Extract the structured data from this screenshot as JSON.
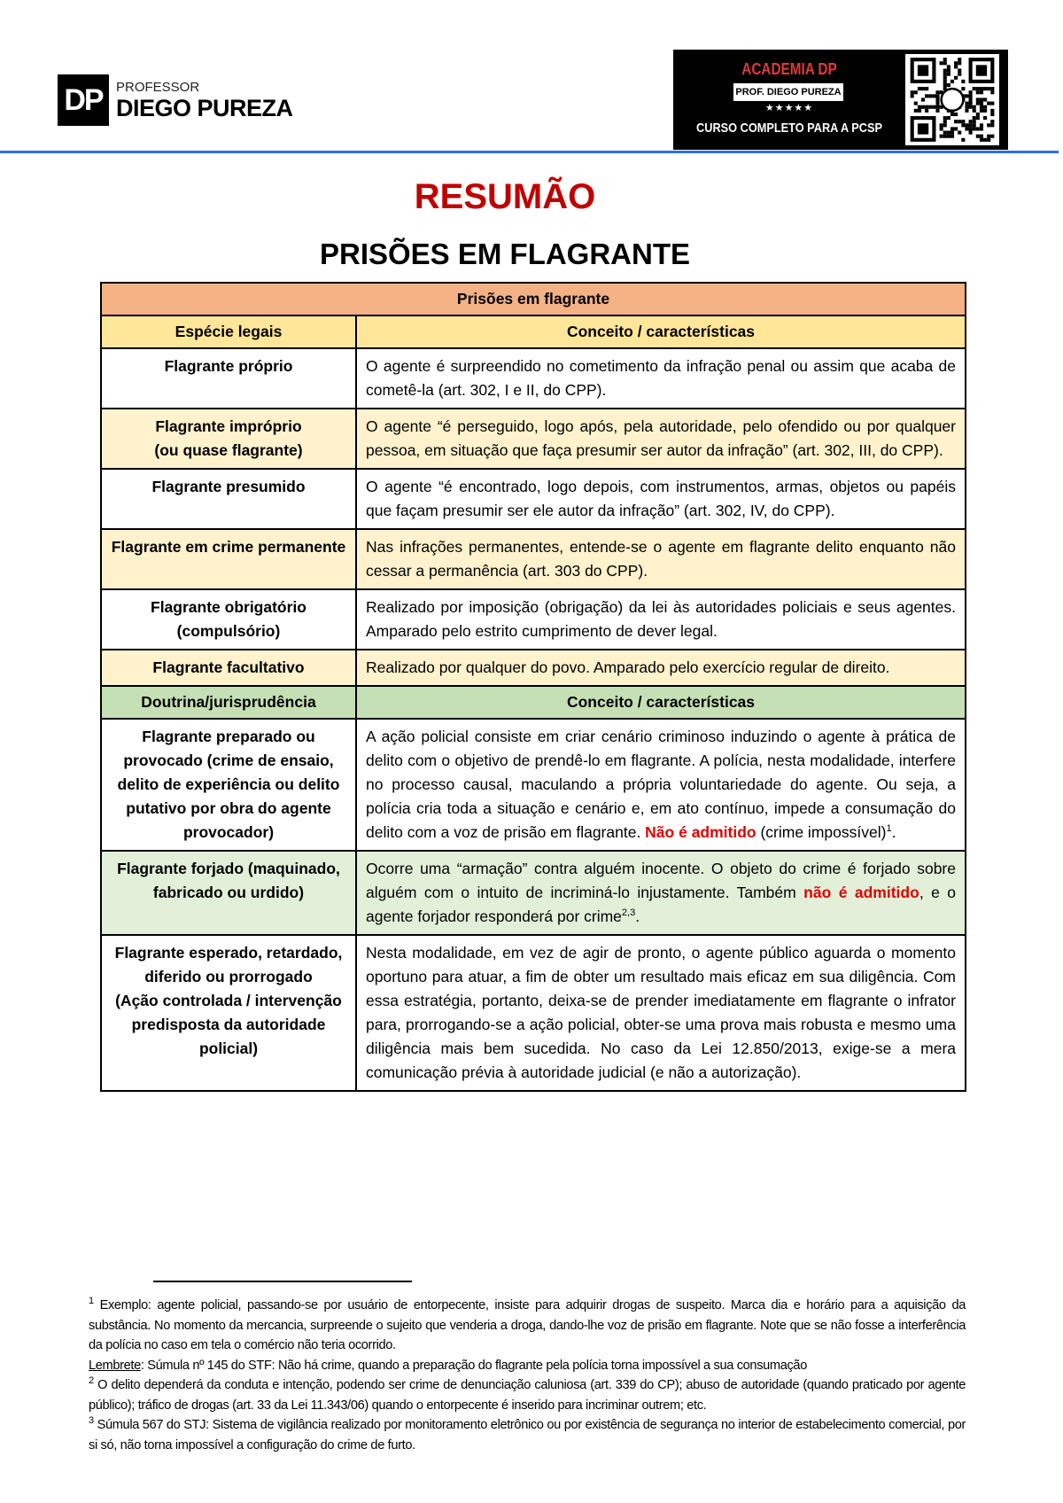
{
  "header": {
    "logo_mark": "DP",
    "logo_small": "PROFESSOR",
    "logo_name": "DIEGO PUREZA",
    "banner": {
      "title": "ACADEMIA DP",
      "prof": "PROF. DIEGO PUREZA",
      "stars": "★★★★★",
      "course": "CURSO COMPLETO PARA A PCSP",
      "qr_icon": "qr-code"
    },
    "rule_color": "#2e6fd6"
  },
  "title": "RESUMÃO",
  "subtitle": "PRISÕES EM FLAGRANTE",
  "colors": {
    "title_red": "#c00000",
    "top_header": "#f4b183",
    "yellow_header": "#ffe699",
    "yellow_row": "#fff2cc",
    "green_header": "#c5e0b4",
    "green_row": "#e2f0d9"
  },
  "table": {
    "caption": "Prisões em flagrante",
    "rows": [
      {
        "kind": "hdr",
        "bg": "#ffe699",
        "c1": [
          {
            "t": "Espécie legais"
          }
        ],
        "c2": [
          {
            "t": "Conceito / características"
          }
        ]
      },
      {
        "bg": "#ffffff",
        "c1": [
          {
            "t": "Flagrante próprio"
          }
        ],
        "c2": [
          {
            "t": "O agente é surpreendido no cometimento da infração penal ou assim que acaba de cometê-la (art. 302, I e II, do CPP)."
          }
        ]
      },
      {
        "bg": "#fff2cc",
        "c1": [
          {
            "t": "Flagrante impróprio"
          },
          {
            "br": true,
            "t": "(ou quase flagrante)"
          }
        ],
        "c2": [
          {
            "t": "O agente “é perseguido, logo após, pela autoridade, pelo ofendido ou por qualquer pessoa, em situação que faça presumir ser autor da infração” (art. 302, III, do CPP)."
          }
        ]
      },
      {
        "bg": "#ffffff",
        "c1": [
          {
            "t": "Flagrante presumido"
          }
        ],
        "c2": [
          {
            "t": "O agente “é encontrado, logo depois, com instrumentos, armas, objetos ou papéis que façam presumir ser ele autor da infração” (art. 302, IV, do CPP)."
          }
        ]
      },
      {
        "bg": "#fff2cc",
        "c1": [
          {
            "t": "Flagrante em crime permanente"
          }
        ],
        "c2": [
          {
            "t": "Nas infrações permanentes, entende-se o agente em flagrante delito enquanto não cessar a permanência (art. 303 do CPP)."
          }
        ]
      },
      {
        "bg": "#ffffff",
        "c1": [
          {
            "t": "Flagrante obrigatório (compulsório)"
          }
        ],
        "c2": [
          {
            "t": "Realizado por imposição (obrigação) da lei às autoridades policiais e seus agentes. Amparado pelo estrito cumprimento de dever legal."
          }
        ]
      },
      {
        "bg": "#fff2cc",
        "c1": [
          {
            "t": "Flagrante facultativo"
          }
        ],
        "c2": [
          {
            "t": "Realizado por qualquer do povo. Amparado pelo exercício regular de direito."
          }
        ]
      },
      {
        "kind": "hdr",
        "bg": "#c5e0b4",
        "c1": [
          {
            "t": "Doutrina/jurisprudência"
          }
        ],
        "c2": [
          {
            "t": "Conceito / características"
          }
        ]
      },
      {
        "bg": "#ffffff",
        "c1": [
          {
            "t": "Flagrante preparado ou provocado (crime de ensaio, delito de experiência ou delito putativo por obra do agente provocador)"
          }
        ],
        "c2": [
          {
            "t": "A ação policial consiste em criar cenário criminoso induzindo o agente à prática de delito com o objetivo de prendê-lo em flagrante. A polícia, nesta modalidade, interfere no processo causal, maculando a própria voluntariedade do agente. Ou seja, a polícia cria toda a situação e cenário e, em ato contínuo, impede a consumação do delito com a voz de prisão em flagrante. "
          },
          {
            "t": "Não é admitido",
            "red": true
          },
          {
            "t": " (crime impossível)"
          },
          {
            "t": "1",
            "sup": true
          },
          {
            "t": "."
          }
        ]
      },
      {
        "bg": "#e2f0d9",
        "c1": [
          {
            "t": "Flagrante forjado (maquinado, fabricado ou urdido)"
          }
        ],
        "c2": [
          {
            "t": "Ocorre uma “armação” contra alguém inocente. O objeto do crime é forjado sobre alguém com o intuito de incriminá-lo injustamente. Também "
          },
          {
            "t": "não é admitido",
            "red": true
          },
          {
            "t": ", e o agente forjador responderá por crime"
          },
          {
            "t": "2,3",
            "sup": true
          },
          {
            "t": "."
          }
        ]
      },
      {
        "bg": "#ffffff",
        "c1": [
          {
            "t": "Flagrante esperado, retardado, diferido ou prorrogado"
          },
          {
            "br": true,
            "t": "(Ação controlada / intervenção predisposta da autoridade policial)"
          }
        ],
        "c2": [
          {
            "t": "Nesta modalidade, em vez de agir de pronto, o agente público aguarda o momento oportuno para atuar, a fim de obter um resultado mais eficaz em sua diligência. Com essa estratégia, portanto, deixa-se de prender imediatamente em flagrante o infrator para, prorrogando-se a ação policial, obter-se uma prova mais robusta e mesmo uma diligência mais bem sucedida. No caso da Lei 12.850/2013, exige-se a mera comunicação prévia à autoridade judicial (e não a autorização)."
          }
        ]
      }
    ]
  },
  "footnotes": [
    [
      {
        "t": "1",
        "sup": true
      },
      {
        "t": " Exemplo: agente policial, passando-se por usuário de entorpecente, insiste para adquirir drogas de suspeito. Marca dia e horário para a aquisição da substância. No momento da mercancia, surpreende o sujeito que venderia a droga, dando-lhe voz de prisão em flagrante. Note que se não fosse a interferência da polícia no caso em tela o comércio não teria ocorrido."
      }
    ],
    [
      {
        "t": "Lembrete",
        "u": true
      },
      {
        "t": ": Súmula nº 145 do STF: Não há crime, quando a preparação do flagrante pela polícia torna impossível a sua consumação"
      }
    ],
    [
      {
        "t": "2",
        "sup": true
      },
      {
        "t": "  O delito dependerá da conduta e intenção, podendo ser crime de denunciação caluniosa (art. 339 do CP); abuso de autoridade (quando praticado por agente público); tráfico de drogas (art. 33 da Lei 11.343/06) quando o entorpecente é inserido para incriminar outrem; etc."
      }
    ],
    [
      {
        "t": "3",
        "sup": true
      },
      {
        "t": " Súmula 567 do STJ: Sistema de vigilância realizado por monitoramento eletrônico ou por existência de segurança no interior de estabelecimento comercial, por si só, não torna impossível a configuração do crime de furto."
      }
    ]
  ]
}
